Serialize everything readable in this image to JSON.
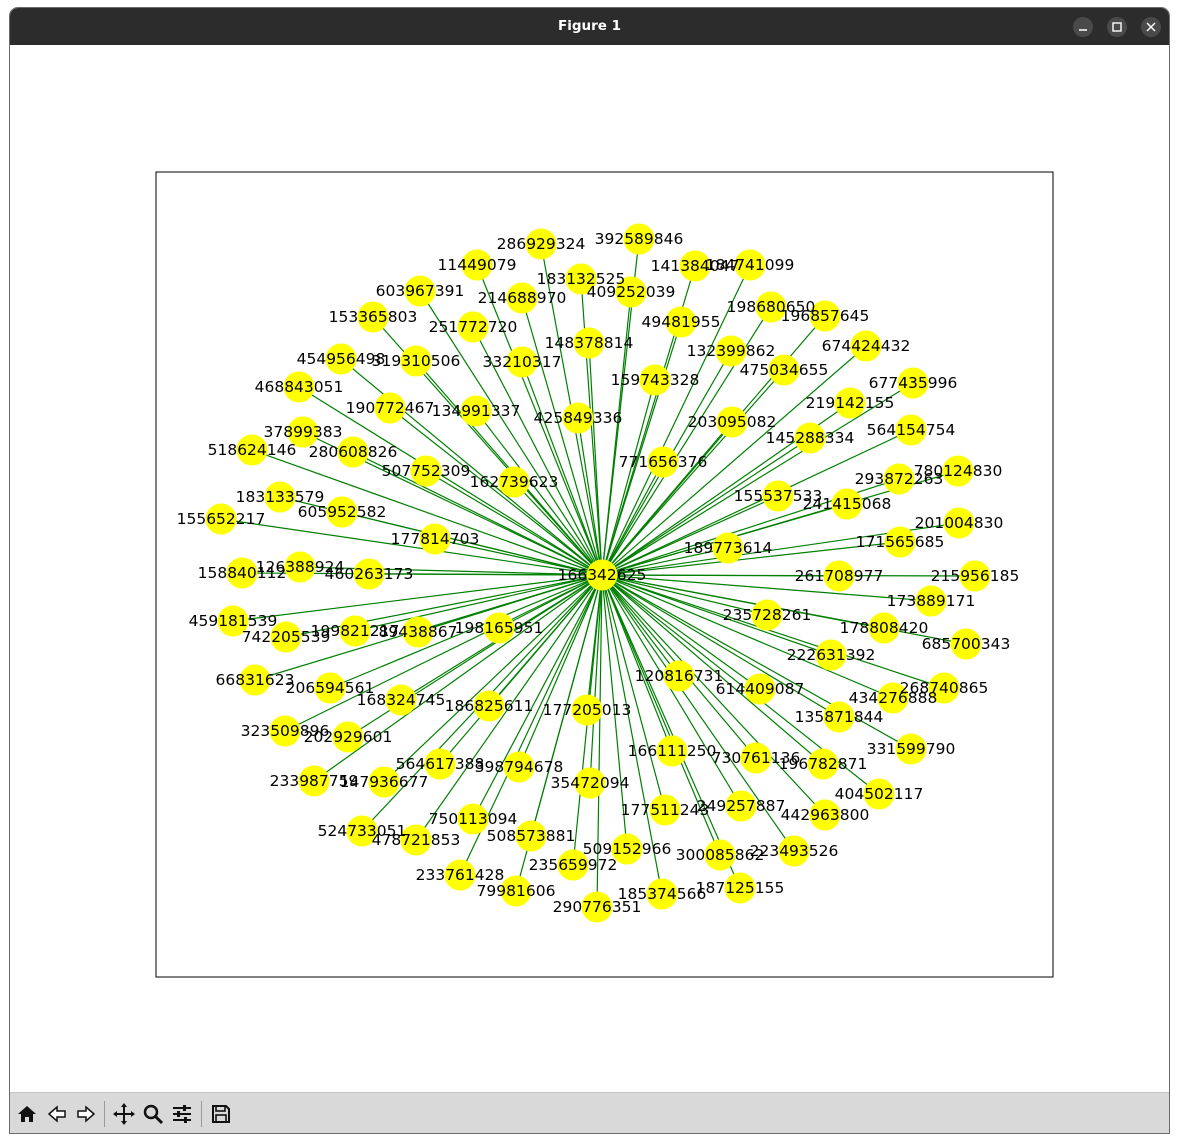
{
  "window": {
    "title": "Figure 1",
    "controls": [
      "minimize-icon",
      "maximize-icon",
      "close-icon"
    ]
  },
  "toolbar": {
    "buttons": [
      "home-icon",
      "back-icon",
      "forward-icon",
      "pan-icon",
      "zoom-icon",
      "configure-subplots-icon",
      "save-icon"
    ]
  },
  "colors": {
    "node_fill": "#ffff00",
    "edge": "#008000",
    "label": "#000000",
    "titlebar": "#2c2c2c",
    "toolbar": "#d9d9d9"
  },
  "chart_data": {
    "type": "network",
    "layout": "star",
    "center": "166342625",
    "edges_from_center_to_all": true,
    "nodes": [
      "286929324",
      "392589846",
      "11449079",
      "183132525",
      "141384047",
      "184741099",
      "603967391",
      "214688970",
      "409252039",
      "198680650",
      "196857645",
      "153365803",
      "251772720",
      "49481955",
      "148378814",
      "674424432",
      "454956498",
      "319310506",
      "33210317",
      "132399862",
      "475034655",
      "468843051",
      "159743328",
      "677435996",
      "190772467",
      "134991337",
      "425849336",
      "219142155",
      "37899383",
      "203095082",
      "564154754",
      "518624146",
      "280608826",
      "145288334",
      "771656376",
      "507752309",
      "780124830",
      "162739623",
      "293872263",
      "183133579",
      "155537533",
      "241415068",
      "605952582",
      "155652217",
      "177814703",
      "201004830",
      "189773614",
      "171565685",
      "158840112",
      "126388924",
      "460263173",
      "166342625",
      "261708977",
      "215956185",
      "173889171",
      "459181539",
      "235728261",
      "198165951",
      "742205539",
      "199821217",
      "89438867",
      "178808420",
      "685700343",
      "222631392",
      "66831623",
      "206594561",
      "120816731",
      "268740865",
      "614409087",
      "168324745",
      "186825611",
      "434276888",
      "177205013",
      "323509896",
      "135871844",
      "202929601",
      "331599790",
      "166111250",
      "730761136",
      "564617388",
      "398794678",
      "196782871",
      "233987759",
      "147936677",
      "35472094",
      "404502117",
      "249257887",
      "177511243",
      "442963800",
      "750113094",
      "524733051",
      "478721853",
      "508573881",
      "509152966",
      "300085862",
      "223493526",
      "235659972",
      "233761428",
      "187125155",
      "79981606",
      "185374566",
      "290776351"
    ]
  }
}
